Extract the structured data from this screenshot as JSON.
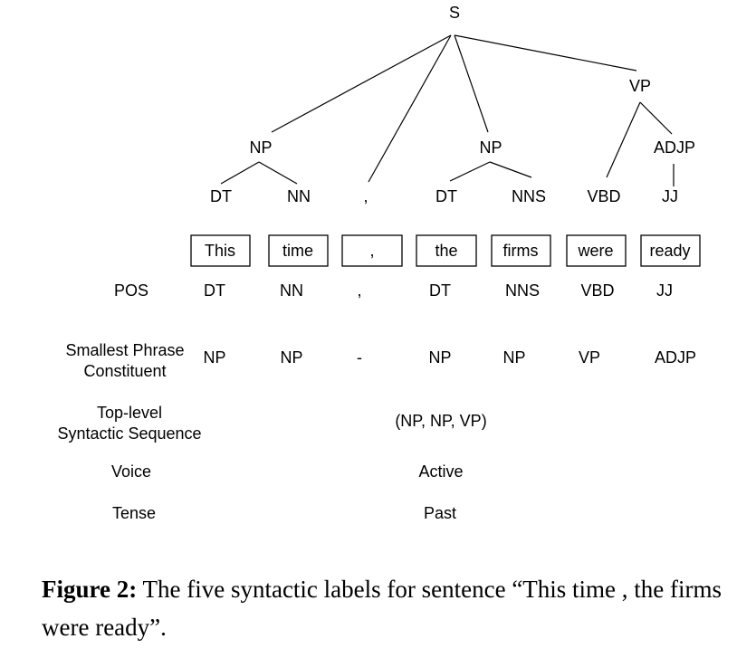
{
  "tree": {
    "root": "S",
    "phrase_nodes": [
      "NP",
      "NP",
      "VP",
      "ADJP"
    ],
    "pos_nodes": [
      "DT",
      "NN",
      ",",
      "DT",
      "NNS",
      "VBD",
      "JJ"
    ]
  },
  "tokens": [
    "This",
    "time",
    ",",
    "the",
    "firms",
    "were",
    "ready"
  ],
  "rows": {
    "pos": {
      "label": "POS",
      "values": [
        "DT",
        "NN",
        ",",
        "DT",
        "NNS",
        "VBD",
        "JJ"
      ]
    },
    "smallest_phrase": {
      "label_line1": "Smallest Phrase",
      "label_line2": "Constituent",
      "values": [
        "NP",
        "NP",
        "-",
        "NP",
        "NP",
        "VP",
        "ADJP"
      ]
    },
    "top_level": {
      "label_line1": "Top-level",
      "label_line2": "Syntactic Sequence",
      "value": "(NP, NP, VP)"
    },
    "voice": {
      "label": "Voice",
      "value": "Active"
    },
    "tense": {
      "label": "Tense",
      "value": "Past"
    }
  },
  "caption": {
    "label": "Figure 2:",
    "text": " The five syntactic labels for sentence “This time , the firms were ready”."
  }
}
